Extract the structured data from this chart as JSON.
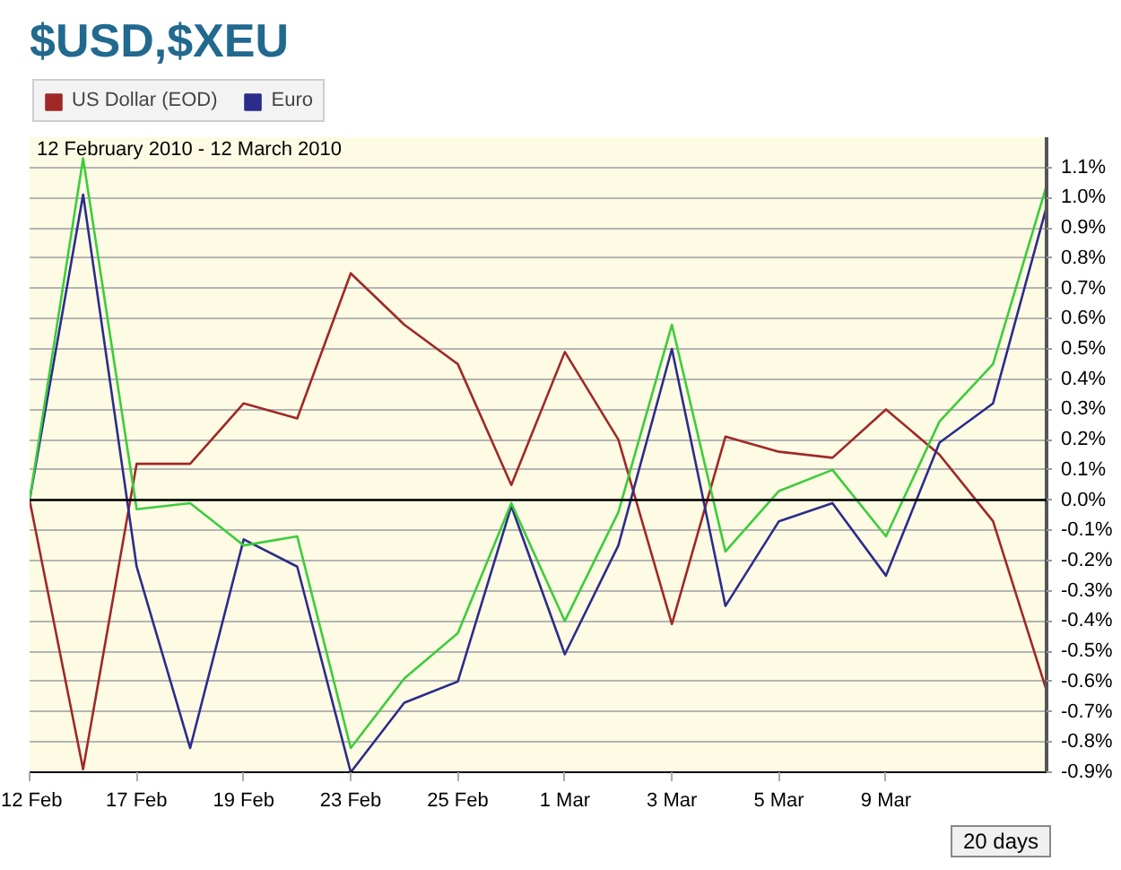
{
  "chart_data": {
    "type": "line",
    "title": "$USD,$XEU",
    "subtitle": "12 February 2010 - 12 March 2010",
    "categories": [
      "12 Feb",
      null,
      "17 Feb",
      null,
      "19 Feb",
      null,
      "23 Feb",
      null,
      "25 Feb",
      null,
      "1 Mar",
      null,
      "3 Mar",
      null,
      "5 Mar",
      null,
      "9 Mar",
      null,
      null,
      null
    ],
    "series": [
      {
        "name": "US Dollar (EOD)",
        "color": "#a02828",
        "values": [
          0,
          -0.89,
          0.12,
          0.12,
          0.32,
          0.27,
          0.75,
          0.58,
          0.45,
          0.05,
          0.49,
          0.2,
          -0.41,
          0.21,
          0.16,
          0.14,
          0.3,
          0.15,
          -0.07,
          -0.63
        ]
      },
      {
        "name": "Euro",
        "color": "#2c2c8c",
        "values": [
          0,
          1.01,
          -0.22,
          -0.82,
          -0.13,
          -0.22,
          -0.9,
          -0.67,
          -0.6,
          -0.02,
          -0.51,
          -0.15,
          0.5,
          -0.35,
          -0.07,
          -0.01,
          -0.25,
          0.19,
          0.32,
          0.97
        ]
      },
      {
        "color": "#3ccc3c",
        "values": [
          0,
          1.13,
          -0.03,
          -0.01,
          -0.15,
          -0.12,
          -0.82,
          -0.59,
          -0.44,
          -0.01,
          -0.4,
          -0.04,
          0.58,
          -0.17,
          0.03,
          0.1,
          -0.12,
          0.26,
          0.45,
          1.04
        ]
      }
    ],
    "ylim": [
      -0.9,
      1.2
    ],
    "yticks": [
      {
        "value": -0.9,
        "label": "-0.9%"
      },
      {
        "value": -0.8,
        "label": "-0.8%"
      },
      {
        "value": -0.7,
        "label": "-0.7%"
      },
      {
        "value": -0.6,
        "label": "-0.6%"
      },
      {
        "value": -0.5,
        "label": "-0.5%"
      },
      {
        "value": -0.4,
        "label": "-0.4%"
      },
      {
        "value": -0.3,
        "label": "-0.3%"
      },
      {
        "value": -0.2,
        "label": "-0.2%"
      },
      {
        "value": -0.1,
        "label": "-0.1%"
      },
      {
        "value": 0,
        "label": "0.0%"
      },
      {
        "value": 0.1,
        "label": "0.1%"
      },
      {
        "value": 0.2,
        "label": "0.2%"
      },
      {
        "value": 0.3,
        "label": "0.3%"
      },
      {
        "value": 0.4,
        "label": "0.4%"
      },
      {
        "value": 0.5,
        "label": "0.5%"
      },
      {
        "value": 0.6,
        "label": "0.6%"
      },
      {
        "value": 0.7,
        "label": "0.7%"
      },
      {
        "value": 0.8,
        "label": "0.8%"
      },
      {
        "value": 0.9,
        "label": "0.9%"
      },
      {
        "value": 1.0,
        "label": "1.0%"
      },
      {
        "value": 1.1,
        "label": "1.1%"
      }
    ],
    "grid": "y",
    "legend": "top left",
    "line_style": "solid",
    "ref_lines": [
      {
        "axis": "y",
        "value": 0,
        "color": "#000000"
      }
    ],
    "annotations": [
      "20 days"
    ]
  }
}
